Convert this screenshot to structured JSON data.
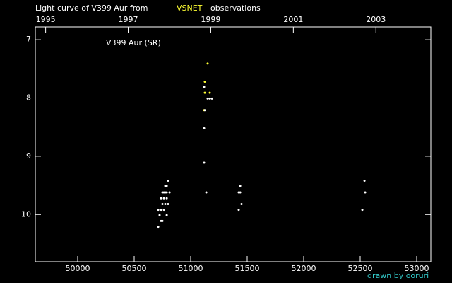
{
  "chart_data": {
    "type": "scatter",
    "title": "Light curve of V399 Aur from",
    "title_suffix": "observations",
    "annotation": "V399 Aur (SR)",
    "footer": "drawn by ooruri",
    "xlim": [
      49625,
      53125
    ],
    "xticks": [
      50000,
      50500,
      51000,
      51500,
      52000,
      52500,
      53000
    ],
    "x2lim": [
      1994.75,
      2004.33
    ],
    "x2ticks": [
      1995,
      1997,
      1999,
      2001,
      2003
    ],
    "ylim": [
      6.78,
      10.81
    ],
    "y_inverted": true,
    "yticks": [
      7,
      8,
      9,
      10
    ],
    "series": [
      {
        "name": "VSNET",
        "color": "#ffff33",
        "x": [
          51150,
          51125,
          51125,
          51169,
          51119
        ],
        "values": [
          7.41,
          7.72,
          7.91,
          7.91,
          8.21
        ]
      },
      {
        "color": "#ffffff",
        "x": [
          50800,
          50788,
          50775,
          50750,
          50763,
          50775,
          50788,
          50813,
          50738,
          50763,
          50788,
          50750,
          50775,
          50800,
          50713,
          50738,
          50763,
          50788,
          50725,
          50738,
          50750,
          50713,
          51119,
          51150,
          51169,
          51188,
          51125,
          51119,
          51119,
          51138,
          51438,
          51425,
          51438,
          51450,
          51425,
          52538,
          52544,
          52519
        ],
        "values": [
          9.42,
          9.51,
          9.51,
          9.62,
          9.62,
          9.62,
          9.62,
          9.62,
          9.72,
          9.72,
          9.72,
          9.82,
          9.82,
          9.82,
          9.92,
          9.92,
          9.92,
          10.01,
          10.01,
          10.11,
          10.11,
          10.21,
          7.81,
          8.01,
          8.01,
          8.01,
          8.21,
          8.52,
          9.11,
          9.62,
          9.51,
          9.62,
          9.62,
          9.82,
          9.92,
          9.42,
          9.62,
          9.92
        ]
      }
    ],
    "footer_color": "#33cccc"
  }
}
